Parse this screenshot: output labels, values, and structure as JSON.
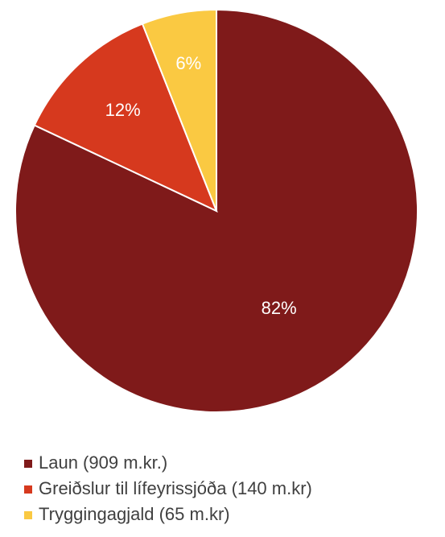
{
  "chart_data": {
    "type": "pie",
    "categories": [
      "Laun (909 m.kr.)",
      "Greiðslur til lífeyrissjóða (140 m.kr)",
      "Tryggingagjald (65 m.kr)"
    ],
    "values": [
      82,
      12,
      6
    ],
    "value_labels": [
      "82%",
      "12%",
      "6%"
    ],
    "colors": [
      "#7f1a1a",
      "#d6391e",
      "#fac942"
    ],
    "legend": "bottom"
  }
}
